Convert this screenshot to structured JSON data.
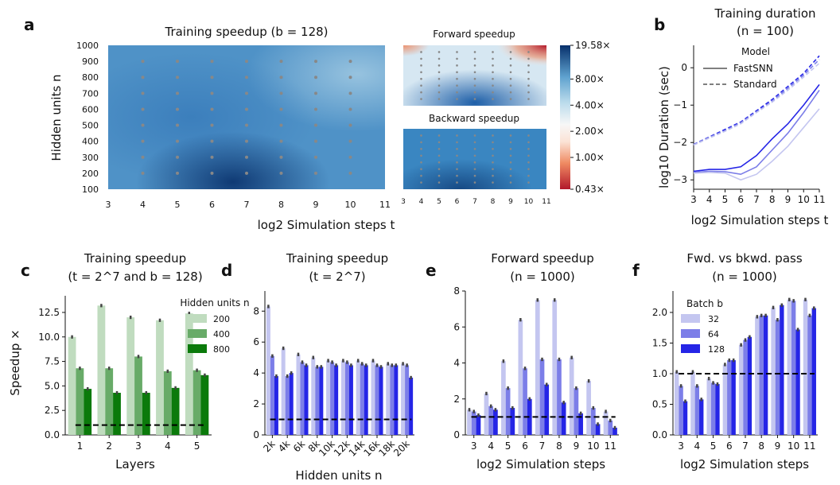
{
  "panels": {
    "a": {
      "letter": "a",
      "title": "Training speedup (b = 128)",
      "xlabel": "log2 Simulation steps t",
      "ylabel": "Hidden units n",
      "x_ticks": [
        "3",
        "4",
        "5",
        "6",
        "7",
        "8",
        "9",
        "10",
        "11"
      ],
      "y_ticks": [
        "100",
        "200",
        "300",
        "400",
        "500",
        "600",
        "700",
        "800",
        "900",
        "1000"
      ],
      "forward_title": "Forward speedup",
      "backward_title": "Backward speedup",
      "small_x_ticks": [
        "3",
        "4",
        "5",
        "6",
        "7",
        "8",
        "9",
        "10",
        "11"
      ],
      "colorbar_ticks": [
        "19.58×",
        "8.00×",
        "4.00×",
        "2.00×",
        "1.00×",
        "0.43×"
      ]
    },
    "b": {
      "letter": "b",
      "title_line1": "Training duration",
      "title_line2": "(n = 100)",
      "xlabel": "log2 Simulation steps t",
      "ylabel": "log10 Duration (sec)",
      "x_ticks": [
        "3",
        "4",
        "5",
        "6",
        "7",
        "8",
        "9",
        "10",
        "11"
      ],
      "y_ticks": [
        "0",
        "−1",
        "−2",
        "−3"
      ],
      "legend_title": "Model",
      "legend_items": [
        "FastSNN",
        "Standard"
      ]
    },
    "c": {
      "letter": "c",
      "title_line1": "Training speedup",
      "title_line2": "(t = 2^7 and b = 128)",
      "xlabel": "Layers",
      "ylabel": "Speedup ×",
      "legend_title": "Hidden units n"
    },
    "d": {
      "letter": "d",
      "title_line1": "Training speedup",
      "title_line2": "(t = 2^7)",
      "xlabel": "Hidden units n"
    },
    "e": {
      "letter": "e",
      "title_line1": "Forward speedup",
      "title_line2": "(n = 1000)",
      "xlabel": "log2 Simulation steps"
    },
    "f": {
      "letter": "f",
      "title_line1": "Fwd. vs bkwd. pass",
      "title_line2": "(n = 1000)",
      "xlabel": "log2 Simulation steps",
      "legend_title": "Batch b"
    }
  },
  "colors": {
    "green": [
      "#c0dcbf",
      "#68ab68",
      "#0b7a0b"
    ],
    "blue": [
      "#c4c6f0",
      "#7c7ee8",
      "#2525e6"
    ],
    "errorbar": "#444444",
    "dashed": "#000000"
  },
  "chart_data": [
    {
      "id": "c",
      "type": "bar",
      "categories": [
        "1",
        "2",
        "3",
        "4",
        "5"
      ],
      "series": [
        {
          "name": "200",
          "values": [
            10.0,
            13.2,
            12.0,
            11.7,
            12.4
          ]
        },
        {
          "name": "400",
          "values": [
            6.8,
            6.8,
            8.0,
            6.5,
            6.6
          ]
        },
        {
          "name": "800",
          "values": [
            4.7,
            4.3,
            4.3,
            4.8,
            6.1
          ]
        }
      ],
      "yticks": [
        "0.0",
        "2.5",
        "5.0",
        "7.5",
        "10.0",
        "12.5"
      ],
      "ylim": [
        0,
        14.2
      ],
      "reference_line": 1.0
    },
    {
      "id": "d",
      "type": "bar",
      "categories": [
        "2k",
        "4k",
        "6k",
        "8k",
        "10k",
        "12k",
        "14k",
        "16k",
        "18k",
        "20k"
      ],
      "series": [
        {
          "name": "32",
          "values": [
            8.3,
            5.6,
            5.2,
            5.0,
            4.8,
            4.8,
            4.8,
            4.8,
            4.6,
            4.6
          ]
        },
        {
          "name": "64",
          "values": [
            5.1,
            3.8,
            4.7,
            4.4,
            4.7,
            4.7,
            4.6,
            4.5,
            4.5,
            4.5
          ]
        },
        {
          "name": "128",
          "values": [
            3.8,
            4.0,
            4.5,
            4.4,
            4.5,
            4.5,
            4.5,
            4.4,
            4.5,
            3.7
          ]
        }
      ],
      "yticks": [
        "0",
        "2",
        "4",
        "6",
        "8"
      ],
      "ylim": [
        0,
        9.3
      ],
      "reference_line": 1.0
    },
    {
      "id": "e",
      "type": "bar",
      "categories": [
        "3",
        "4",
        "5",
        "6",
        "7",
        "8",
        "9",
        "10",
        "11"
      ],
      "series": [
        {
          "name": "32",
          "values": [
            1.4,
            2.3,
            4.1,
            6.4,
            7.5,
            7.5,
            4.3,
            3.0,
            1.3
          ]
        },
        {
          "name": "64",
          "values": [
            1.3,
            1.6,
            2.6,
            3.7,
            4.2,
            4.2,
            2.6,
            1.5,
            0.8
          ]
        },
        {
          "name": "128",
          "values": [
            1.1,
            1.4,
            1.5,
            2.0,
            2.8,
            1.8,
            1.2,
            0.6,
            0.4
          ]
        }
      ],
      "yticks": [
        "0",
        "2",
        "4",
        "6",
        "8"
      ],
      "ylim": [
        0,
        8
      ],
      "reference_line": 1.0
    },
    {
      "id": "f",
      "type": "bar",
      "categories": [
        "3",
        "4",
        "5",
        "6",
        "7",
        "8",
        "9",
        "10",
        "11"
      ],
      "series": [
        {
          "name": "32",
          "values": [
            1.03,
            1.03,
            0.92,
            1.15,
            1.47,
            1.93,
            2.08,
            2.21,
            2.21
          ]
        },
        {
          "name": "64",
          "values": [
            0.8,
            0.8,
            0.85,
            1.22,
            1.55,
            1.95,
            1.88,
            2.19,
            1.95
          ]
        },
        {
          "name": "128",
          "values": [
            0.55,
            0.58,
            0.83,
            1.22,
            1.6,
            1.95,
            2.12,
            1.72,
            2.07
          ]
        }
      ],
      "yticks": [
        "0.0",
        "0.5",
        "1.0",
        "1.5",
        "2.0"
      ],
      "ylim": [
        0,
        2.35
      ],
      "reference_line": 1.0
    },
    {
      "id": "b",
      "type": "line",
      "x": [
        3,
        4,
        5,
        6,
        7,
        8,
        9,
        10,
        11
      ],
      "series": [
        {
          "name": "FastSNN",
          "values": [
            -2.77,
            -2.72,
            -2.72,
            -2.65,
            -2.35,
            -1.9,
            -1.5,
            -1.0,
            -0.45
          ]
        },
        {
          "name": "FastSNN",
          "values": [
            -2.8,
            -2.77,
            -2.78,
            -2.85,
            -2.65,
            -2.2,
            -1.75,
            -1.2,
            -0.6
          ]
        },
        {
          "name": "FastSNN",
          "values": [
            -2.82,
            -2.8,
            -2.82,
            -3.0,
            -2.85,
            -2.5,
            -2.1,
            -1.6,
            -1.1
          ]
        },
        {
          "name": "Standard",
          "values": [
            -2.05,
            -1.85,
            -1.65,
            -1.45,
            -1.15,
            -0.85,
            -0.5,
            -0.15,
            0.32
          ]
        },
        {
          "name": "Standard",
          "values": [
            -2.05,
            -1.86,
            -1.68,
            -1.47,
            -1.18,
            -0.9,
            -0.55,
            -0.2,
            0.22
          ]
        },
        {
          "name": "Standard",
          "values": [
            -2.07,
            -1.88,
            -1.7,
            -1.5,
            -1.2,
            -0.92,
            -0.6,
            -0.25,
            0.12
          ]
        }
      ],
      "xlim": [
        3,
        11
      ],
      "ylim": [
        -3.25,
        0.6
      ]
    }
  ]
}
